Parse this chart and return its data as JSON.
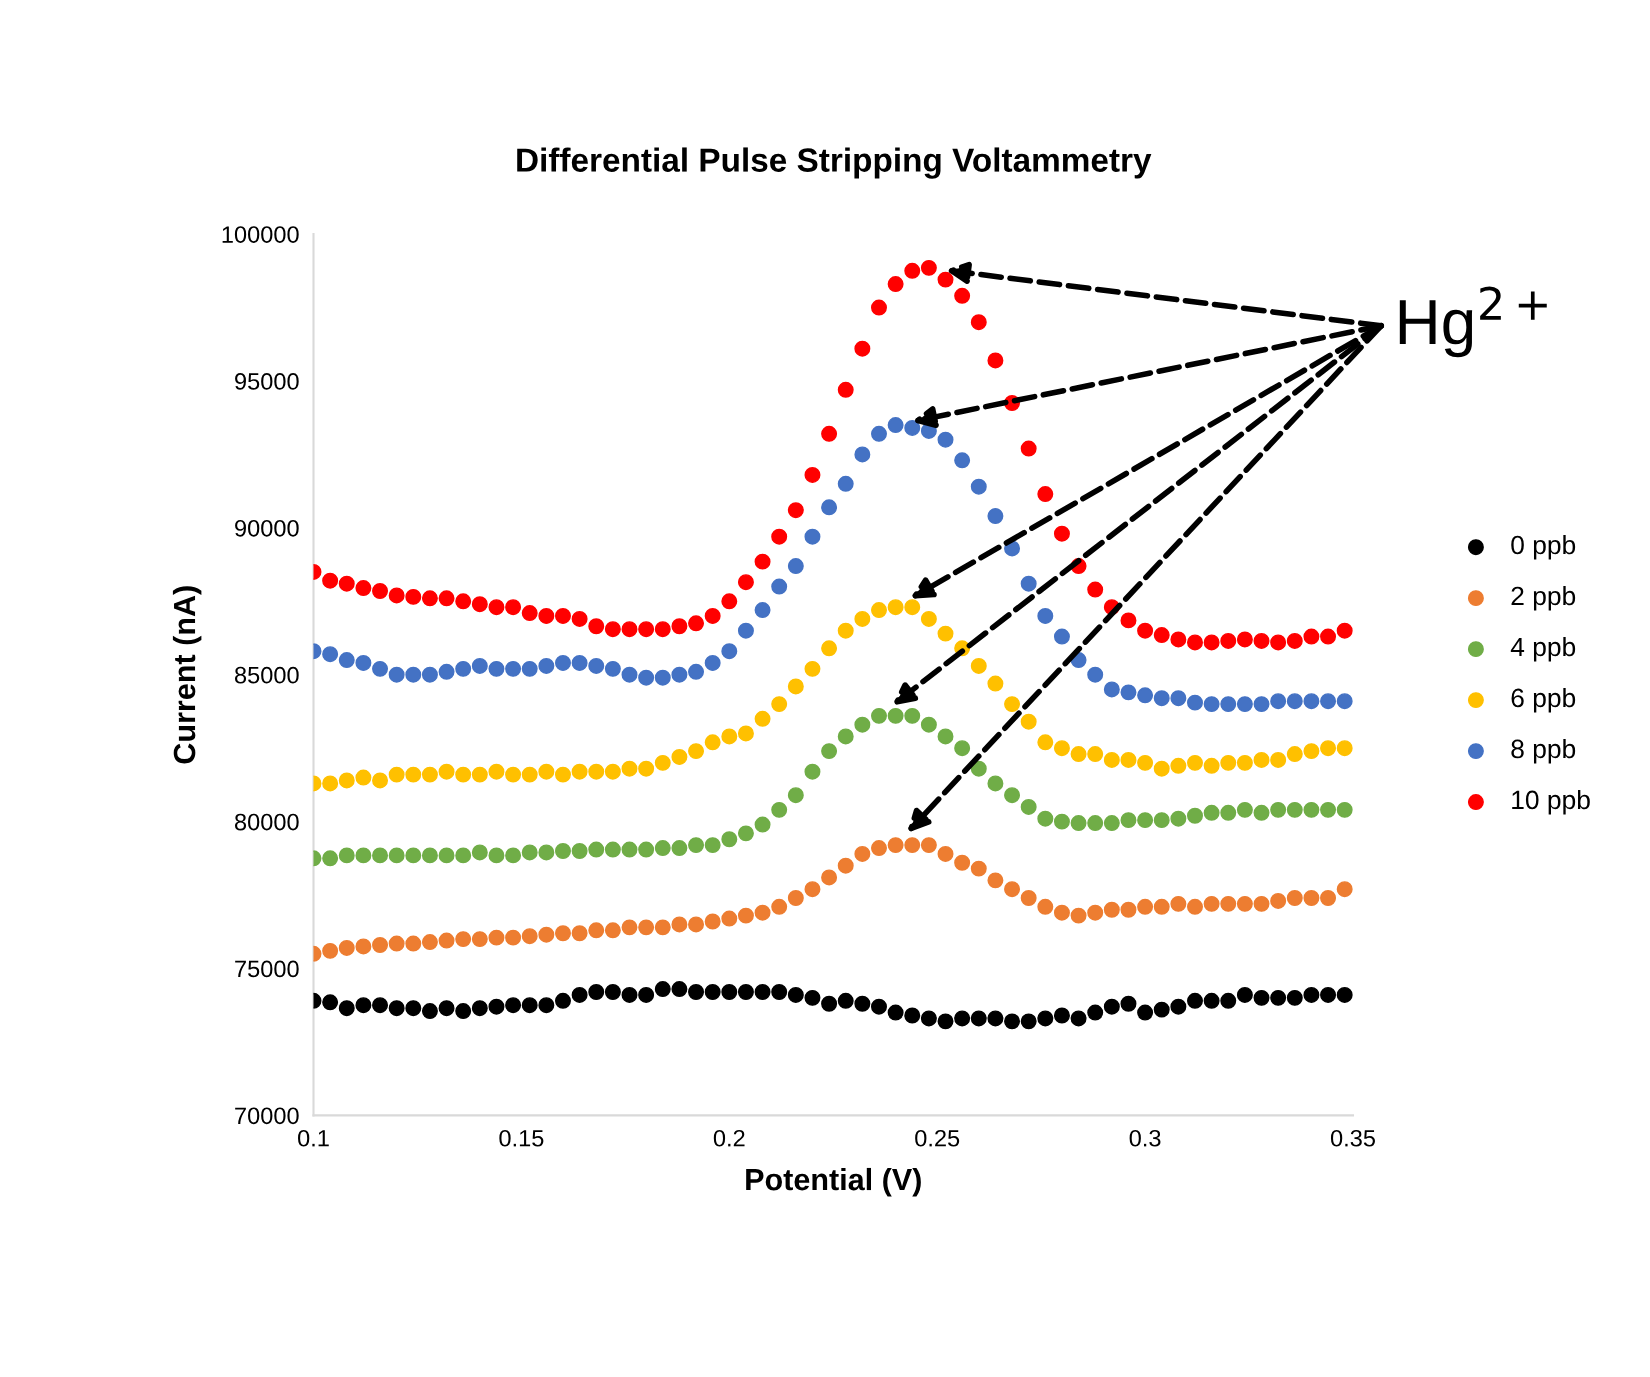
{
  "chart_data": {
    "type": "scatter",
    "title": "Differential Pulse Stripping Voltammetry",
    "xlabel": "Potential (V)",
    "ylabel": "Current (nA)",
    "x": [
      0.1,
      0.104,
      0.108,
      0.112,
      0.116,
      0.12,
      0.124,
      0.128,
      0.132,
      0.136,
      0.14,
      0.144,
      0.148,
      0.152,
      0.156,
      0.16,
      0.164,
      0.168,
      0.172,
      0.176,
      0.18,
      0.184,
      0.188,
      0.192,
      0.196,
      0.2,
      0.204,
      0.208,
      0.212,
      0.216,
      0.22,
      0.224,
      0.228,
      0.232,
      0.236,
      0.24,
      0.244,
      0.248,
      0.252,
      0.256,
      0.26,
      0.264,
      0.268,
      0.272,
      0.276,
      0.28,
      0.284,
      0.288,
      0.292,
      0.296,
      0.3,
      0.304,
      0.308,
      0.312,
      0.316,
      0.32,
      0.324,
      0.328,
      0.332,
      0.336,
      0.34,
      0.344,
      0.348
    ],
    "series": [
      {
        "name": "0 ppb",
        "color": "#000000",
        "values": [
          73900,
          73850,
          73650,
          73750,
          73750,
          73650,
          73650,
          73550,
          73650,
          73550,
          73650,
          73700,
          73750,
          73750,
          73750,
          73900,
          74100,
          74200,
          74200,
          74100,
          74100,
          74300,
          74300,
          74200,
          74200,
          74200,
          74200,
          74200,
          74200,
          74100,
          74000,
          73800,
          73900,
          73800,
          73700,
          73500,
          73400,
          73300,
          73200,
          73300,
          73300,
          73300,
          73200,
          73200,
          73300,
          73400,
          73300,
          73500,
          73700,
          73800,
          73500,
          73600,
          73700,
          73900,
          73900,
          73900,
          74100,
          74000,
          74000,
          74000,
          74100,
          74100,
          74100
        ]
      },
      {
        "name": "2 ppb",
        "color": "#ed7d31",
        "values": [
          75500,
          75600,
          75700,
          75750,
          75800,
          75850,
          75850,
          75900,
          75950,
          76000,
          76000,
          76050,
          76050,
          76100,
          76150,
          76200,
          76200,
          76300,
          76300,
          76400,
          76400,
          76400,
          76500,
          76500,
          76600,
          76700,
          76800,
          76900,
          77100,
          77400,
          77700,
          78100,
          78500,
          78900,
          79100,
          79200,
          79200,
          79200,
          78900,
          78600,
          78400,
          78000,
          77700,
          77400,
          77100,
          76900,
          76800,
          76900,
          77000,
          77000,
          77100,
          77100,
          77200,
          77100,
          77200,
          77200,
          77200,
          77200,
          77300,
          77400,
          77400,
          77400,
          77700
        ]
      },
      {
        "name": "4 ppb",
        "color": "#70ad47",
        "values": [
          78750,
          78750,
          78850,
          78850,
          78850,
          78850,
          78850,
          78850,
          78850,
          78850,
          78950,
          78850,
          78850,
          78950,
          78950,
          79000,
          79000,
          79050,
          79050,
          79050,
          79050,
          79100,
          79100,
          79200,
          79200,
          79400,
          79600,
          79900,
          80400,
          80900,
          81700,
          82400,
          82900,
          83300,
          83600,
          83600,
          83600,
          83300,
          82900,
          82500,
          81800,
          81300,
          80900,
          80500,
          80100,
          80000,
          79950,
          79950,
          79950,
          80050,
          80050,
          80050,
          80100,
          80200,
          80300,
          80300,
          80400,
          80300,
          80400,
          80400,
          80400,
          80400,
          80400
        ]
      },
      {
        "name": "6 ppb",
        "color": "#ffc000",
        "values": [
          81300,
          81300,
          81400,
          81500,
          81400,
          81600,
          81600,
          81600,
          81700,
          81600,
          81600,
          81700,
          81600,
          81600,
          81700,
          81600,
          81700,
          81700,
          81700,
          81800,
          81800,
          82000,
          82200,
          82400,
          82700,
          82900,
          83000,
          83500,
          84000,
          84600,
          85200,
          85900,
          86500,
          86900,
          87200,
          87300,
          87300,
          86900,
          86400,
          85900,
          85300,
          84700,
          84000,
          83400,
          82700,
          82500,
          82300,
          82300,
          82100,
          82100,
          82000,
          81800,
          81900,
          82000,
          81900,
          82000,
          82000,
          82100,
          82100,
          82300,
          82400,
          82500,
          82500
        ]
      },
      {
        "name": "8 ppb",
        "color": "#4472c4",
        "values": [
          85800,
          85700,
          85500,
          85400,
          85200,
          85000,
          85000,
          85000,
          85100,
          85200,
          85300,
          85200,
          85200,
          85200,
          85300,
          85400,
          85400,
          85300,
          85200,
          85000,
          84900,
          84900,
          85000,
          85100,
          85400,
          85800,
          86500,
          87200,
          88000,
          88700,
          89700,
          90700,
          91500,
          92500,
          93200,
          93500,
          93400,
          93300,
          93000,
          92300,
          91400,
          90400,
          89300,
          88100,
          87000,
          86300,
          85500,
          85000,
          84500,
          84400,
          84300,
          84200,
          84200,
          84050,
          84000,
          84000,
          84000,
          84000,
          84100,
          84100,
          84100,
          84100,
          84100
        ]
      },
      {
        "name": "10 ppb",
        "color": "#ff0000",
        "values": [
          88500,
          88200,
          88100,
          87950,
          87850,
          87700,
          87650,
          87600,
          87600,
          87500,
          87400,
          87300,
          87300,
          87100,
          87000,
          87000,
          86900,
          86650,
          86550,
          86550,
          86550,
          86550,
          86650,
          86750,
          87000,
          87500,
          88150,
          88850,
          89700,
          90600,
          91800,
          93200,
          94700,
          96100,
          97500,
          98300,
          98750,
          98850,
          98450,
          97900,
          97000,
          95700,
          94250,
          92700,
          91150,
          89800,
          88700,
          87900,
          87300,
          86850,
          86500,
          86350,
          86200,
          86100,
          86100,
          86150,
          86200,
          86150,
          86100,
          86150,
          86300,
          86300,
          86500
        ]
      }
    ],
    "xlim": [
      0.1,
      0.35
    ],
    "xticks": [
      0.1,
      0.15,
      0.2,
      0.25,
      0.3,
      0.35
    ],
    "ylim": [
      70000,
      100000
    ],
    "yticks": [
      70000,
      75000,
      80000,
      85000,
      90000,
      95000,
      100000
    ],
    "annotations": [
      "Hg$^{2+}$"
    ],
    "legend": "right",
    "marker": "circle",
    "grid": false
  }
}
